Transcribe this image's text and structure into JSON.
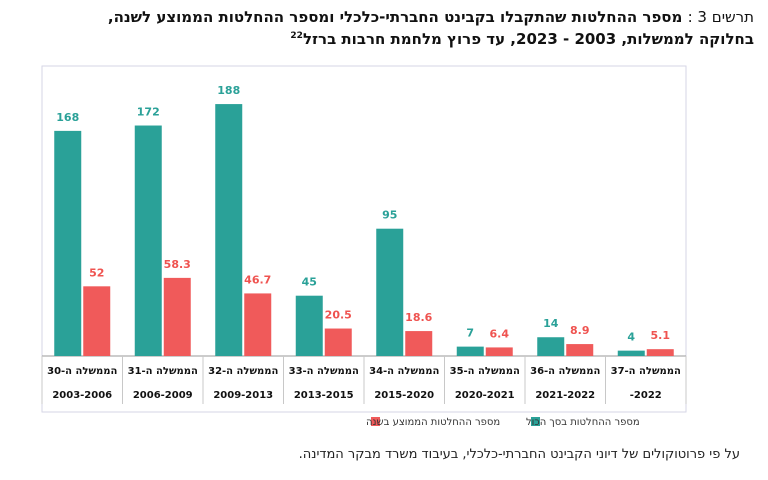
{
  "title_line1": {
    "label": "תרשים 3 :",
    "text": "מספר ההחלטות שהתקבלו בקבינט החברתי-כלכלי ומספר ההחלטות הממוצע לשנה,"
  },
  "title_line2": {
    "text": "בחלוקה לממשלות, 2003 - 2023, עד פרוץ מלחמת חרבות ברזל",
    "footnote": "22"
  },
  "source_note": "על פי פרוטוקולים של דיוני הקבינט החברתי-כלכלי, בעיבוד משרד מבקר המדינה.",
  "colors": {
    "total": "#2aa198",
    "avg": "#f05a5a",
    "total_label": "#2aa198",
    "avg_label": "#ef5350"
  },
  "chart_data": {
    "type": "bar",
    "categories": [
      {
        "gov": "הממשלה ה-30",
        "years": "2003-2006"
      },
      {
        "gov": "הממשלה ה-31",
        "years": "2006-2009"
      },
      {
        "gov": "הממשלה ה-32",
        "years": "2009-2013"
      },
      {
        "gov": "הממשלה ה-33",
        "years": "2013-2015"
      },
      {
        "gov": "הממשלה ה-34",
        "years": "2015-2020"
      },
      {
        "gov": "הממשלה ה-35",
        "years": "2020-2021"
      },
      {
        "gov": "הממשלה ה-36",
        "years": "2021-2022"
      },
      {
        "gov": "הממשלה ה-37",
        "years": "-2022"
      }
    ],
    "series": [
      {
        "name": "מספר ההחלטות בסך הכול",
        "values": [
          168,
          172,
          188,
          45,
          95,
          7,
          14,
          4
        ],
        "labels": [
          "168",
          "172",
          "188",
          "45",
          "95",
          "7",
          "14",
          "4"
        ]
      },
      {
        "name": "מספר ההחלטות הממוצע בשנה",
        "values": [
          52,
          58.3,
          46.7,
          20.5,
          18.6,
          6.4,
          8.9,
          5.1
        ],
        "labels": [
          "52",
          "58.3",
          "46.7",
          "20.5",
          "18.6",
          "6.4",
          "8.9",
          "5.1"
        ]
      }
    ],
    "ylim": [
      0,
      200
    ],
    "grid": false,
    "legend": "bottom"
  }
}
